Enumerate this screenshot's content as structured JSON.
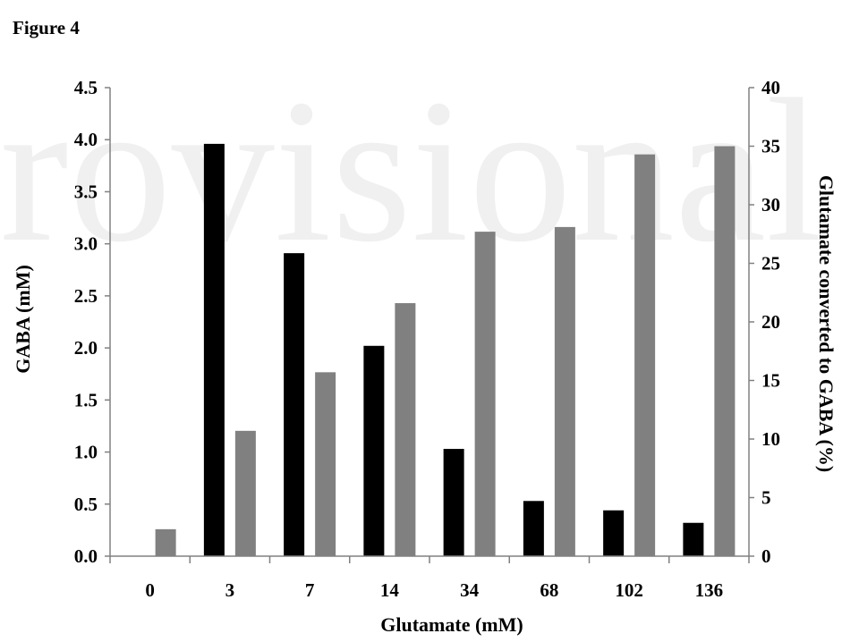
{
  "figure_label": "Figure 4",
  "watermark": "rovisional",
  "chart_data": {
    "type": "bar",
    "title": "",
    "xlabel": "Glutamate (mM)",
    "ylabel": "GABA (mM)",
    "y2label": "Glutamate converted to GABA (%)",
    "categories": [
      "0",
      "3",
      "7",
      "14",
      "34",
      "68",
      "102",
      "136"
    ],
    "ylim": [
      0,
      4.5
    ],
    "y2lim": [
      0,
      40
    ],
    "yticks": [
      0.0,
      0.5,
      1.0,
      1.5,
      2.0,
      2.5,
      3.0,
      3.5,
      4.0,
      4.5
    ],
    "y2ticks": [
      0,
      5,
      10,
      15,
      20,
      25,
      30,
      35,
      40
    ],
    "grid": false,
    "legend": "none",
    "series": [
      {
        "axis": "left",
        "color": "#000000",
        "values": [
          null,
          3.96,
          2.91,
          2.02,
          1.03,
          0.53,
          0.44,
          0.32
        ]
      },
      {
        "axis": "right",
        "color": "#808080",
        "values": [
          2.3,
          10.7,
          15.7,
          21.6,
          27.7,
          28.1,
          34.3,
          35.0
        ]
      }
    ]
  }
}
